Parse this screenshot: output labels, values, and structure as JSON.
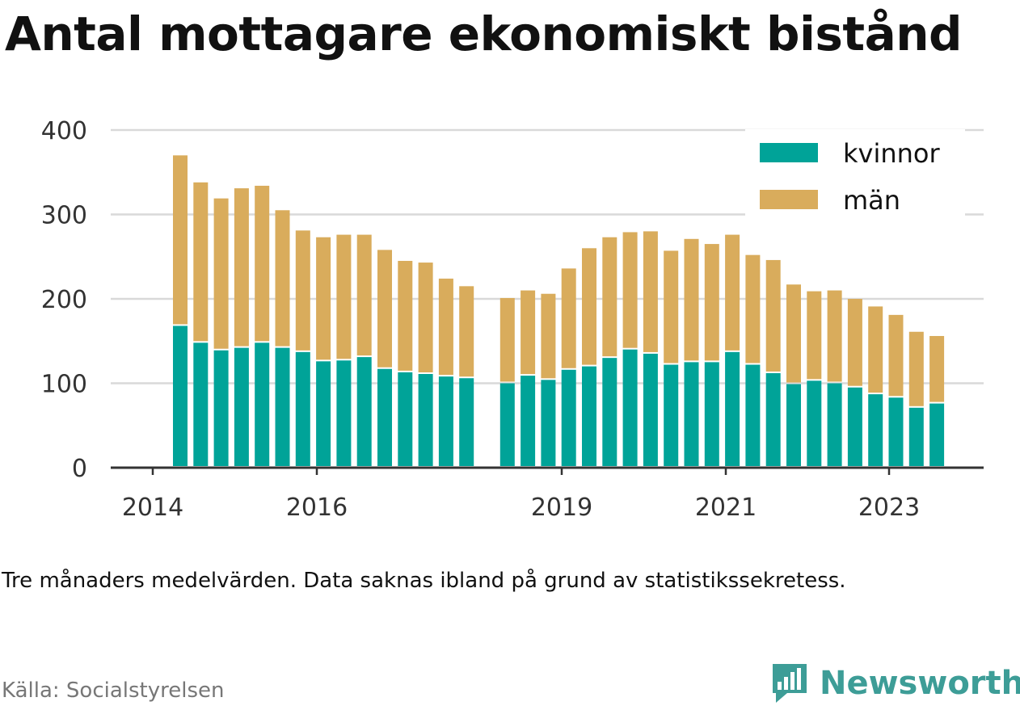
{
  "title": "Antal mottagare ekonomiskt bistånd",
  "note": "Tre månaders medelvärden. Data saknas ibland på grund av statistikssekretess.",
  "source": "Källa: Socialstyrelsen",
  "brand": {
    "name": "Newsworthy",
    "icon": "newsworthy-logo-icon",
    "color": "#3d9d97"
  },
  "chart_data": {
    "type": "bar",
    "stacked": true,
    "yticks": [
      0,
      100,
      200,
      300,
      400
    ],
    "ylim": [
      0,
      400
    ],
    "xticks": [
      "2014",
      "2016",
      "2019",
      "2021",
      "2023"
    ],
    "grid": true,
    "legend_position": "top-right",
    "series": [
      {
        "name": "kvinnor",
        "color": "#00a398",
        "values": [
          168,
          148,
          139,
          142,
          148,
          142,
          137,
          126,
          127,
          131,
          117,
          113,
          111,
          108,
          106,
          null,
          100,
          109,
          104,
          116,
          120,
          130,
          140,
          135,
          122,
          125,
          125,
          137,
          122,
          112,
          99,
          103,
          100,
          95,
          87,
          83,
          71,
          76
        ]
      },
      {
        "name": "män",
        "color": "#d9ac5c",
        "values": [
          202,
          190,
          180,
          189,
          186,
          163,
          144,
          147,
          149,
          145,
          141,
          132,
          132,
          116,
          109,
          null,
          101,
          101,
          102,
          120,
          140,
          143,
          139,
          145,
          135,
          146,
          140,
          139,
          130,
          134,
          118,
          106,
          110,
          105,
          104,
          98,
          90,
          80
        ]
      }
    ]
  }
}
